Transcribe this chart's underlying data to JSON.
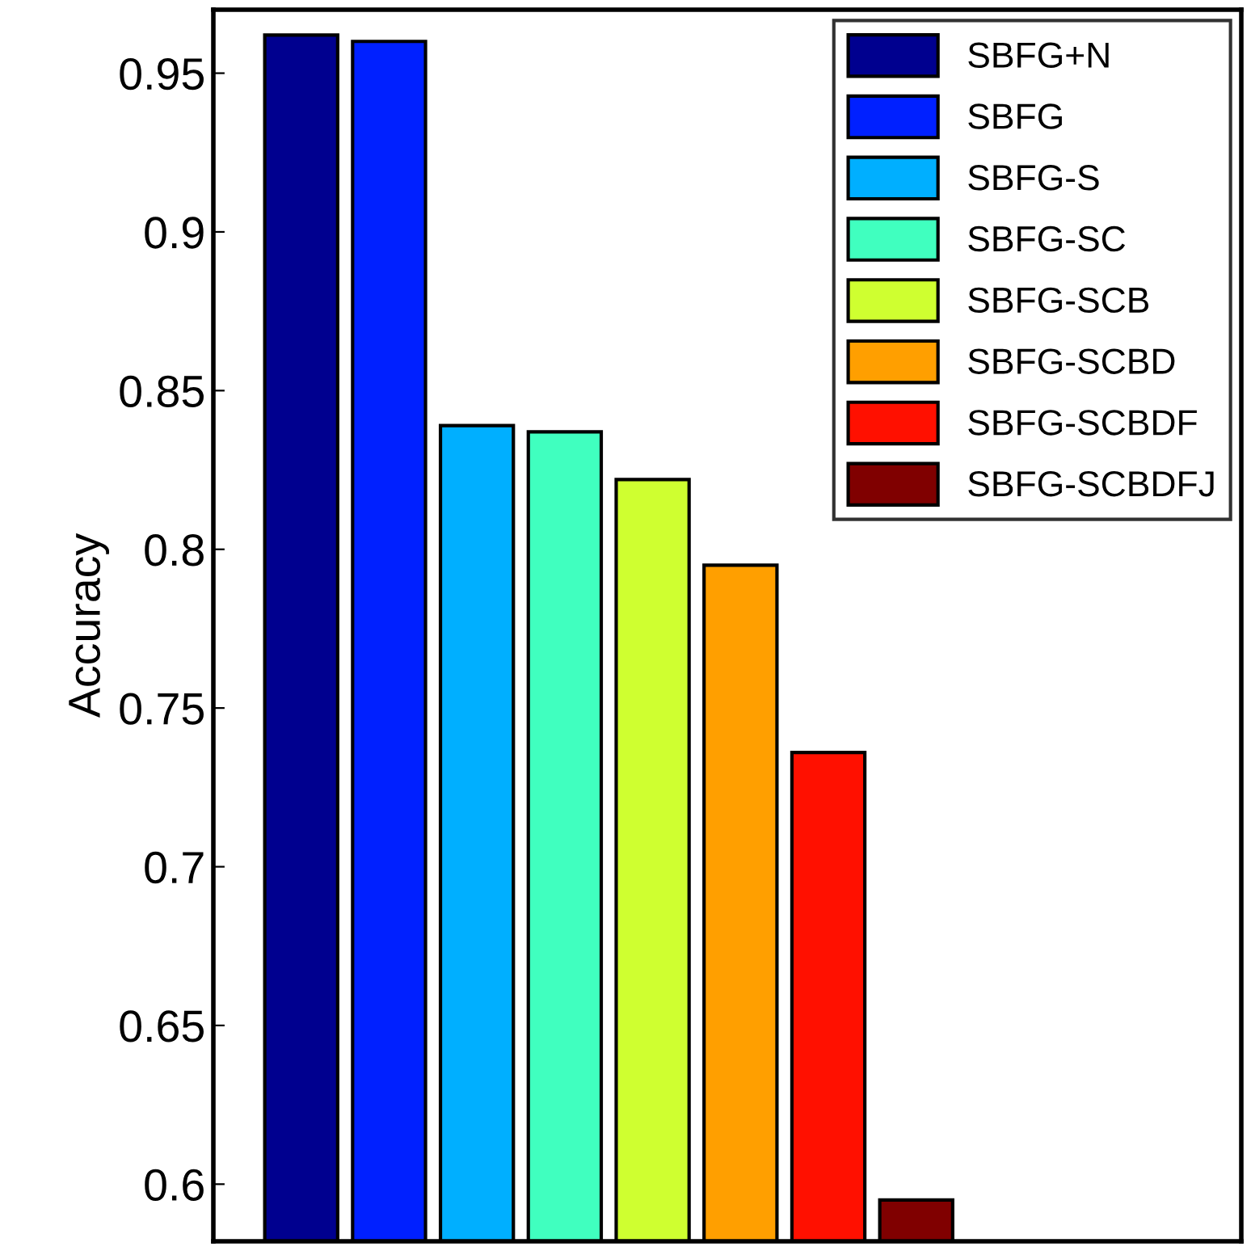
{
  "chart_data": {
    "type": "bar",
    "ylabel": "Accuracy",
    "categories": [
      null
    ],
    "series": [
      {
        "name": "SBFG+N",
        "color": "#00008f",
        "values": [
          0.962
        ]
      },
      {
        "name": "SBFG",
        "color": "#0020ff",
        "values": [
          0.96
        ]
      },
      {
        "name": "SBFG-S",
        "color": "#00afff",
        "values": [
          0.839
        ]
      },
      {
        "name": "SBFG-SC",
        "color": "#40ffbf",
        "values": [
          0.837
        ]
      },
      {
        "name": "SBFG-SCB",
        "color": "#cfff30",
        "values": [
          0.822
        ]
      },
      {
        "name": "SBFG-SCBD",
        "color": "#ff9f00",
        "values": [
          0.795
        ]
      },
      {
        "name": "SBFG-SCBDF",
        "color": "#ff1000",
        "values": [
          0.736
        ]
      },
      {
        "name": "SBFG-SCBDFJ",
        "color": "#800000",
        "values": [
          0.595
        ]
      }
    ],
    "ylim": [
      0.582,
      0.97
    ],
    "yticks": [
      0.6,
      0.65,
      0.7,
      0.75,
      0.8,
      0.85,
      0.9,
      0.95
    ],
    "tick_labels": "y",
    "legend": "top right",
    "grid": false
  }
}
